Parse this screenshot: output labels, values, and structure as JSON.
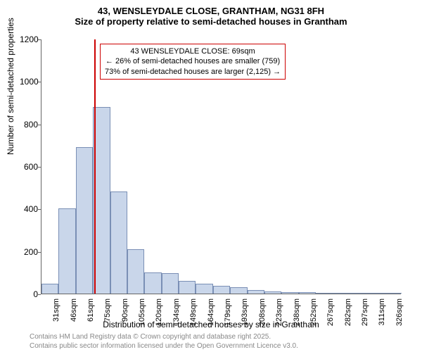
{
  "title": "43, WENSLEYDALE CLOSE, GRANTHAM, NG31 8FH",
  "subtitle": "Size of property relative to semi-detached houses in Grantham",
  "ylabel": "Number of semi-detached properties",
  "xlabel": "Distribution of semi-detached houses by size in Grantham",
  "footer1": "Contains HM Land Registry data © Crown copyright and database right 2025.",
  "footer2": "Contains public sector information licensed under the Open Government Licence v3.0.",
  "chart": {
    "type": "histogram",
    "ylim": [
      0,
      1200
    ],
    "ytick_step": 200,
    "x_categories": [
      "31sqm",
      "46sqm",
      "61sqm",
      "75sqm",
      "90sqm",
      "105sqm",
      "120sqm",
      "134sqm",
      "149sqm",
      "164sqm",
      "179sqm",
      "193sqm",
      "208sqm",
      "223sqm",
      "238sqm",
      "252sqm",
      "267sqm",
      "282sqm",
      "297sqm",
      "311sqm",
      "326sqm"
    ],
    "values": [
      45,
      400,
      690,
      880,
      480,
      210,
      100,
      95,
      60,
      45,
      35,
      30,
      15,
      10,
      8,
      6,
      4,
      3,
      2,
      1,
      1
    ],
    "bar_fill": "#c9d6ea",
    "bar_stroke": "#7a8fb5",
    "bar_width_ratio": 1.0,
    "background_color": "#ffffff",
    "reference_line": {
      "x_value_sqm": 69,
      "color": "#cc0000"
    },
    "annotation": {
      "lines": [
        "43 WENSLEYDALE CLOSE: 69sqm",
        "← 26% of semi-detached houses are smaller (759)",
        "73% of semi-detached houses are larger (2,125) →"
      ],
      "border_color": "#cc0000",
      "text_color": "#000000",
      "bg_color": "#ffffff"
    }
  }
}
